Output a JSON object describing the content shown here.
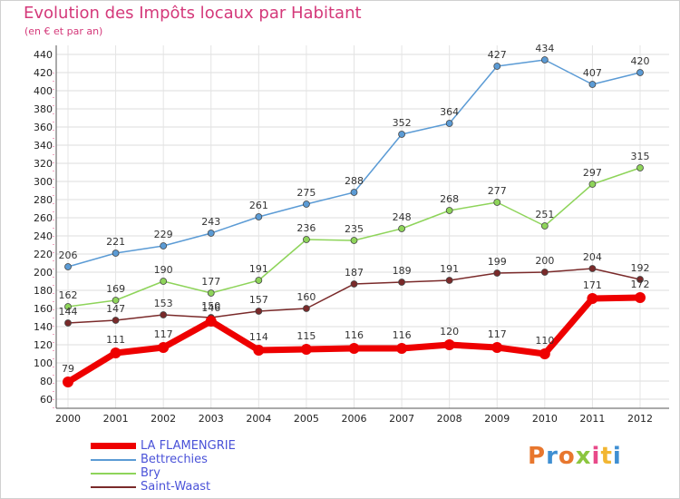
{
  "title": "Evolution des Impôts locaux par Habitant",
  "subtitle": "(en € et par an)",
  "logo_text": "Proxiti",
  "chart_data": {
    "type": "line",
    "x": [
      2000,
      2001,
      2002,
      2003,
      2004,
      2005,
      2006,
      2007,
      2008,
      2009,
      2010,
      2011,
      2012
    ],
    "ylim": [
      60,
      440
    ],
    "yticks": [
      60,
      80,
      100,
      120,
      140,
      160,
      180,
      200,
      220,
      240,
      260,
      280,
      300,
      320,
      340,
      360,
      380,
      400,
      420,
      440
    ],
    "grid": true,
    "legend": "bottom-left",
    "series": [
      {
        "name": "LA FLAMENGRIE",
        "color": "#ee0000",
        "values": [
          79,
          111,
          117,
          146,
          114,
          115,
          116,
          116,
          120,
          117,
          110,
          171,
          172
        ]
      },
      {
        "name": "Bettrechies",
        "color": "#5b9bd5",
        "values": [
          206,
          221,
          229,
          243,
          261,
          275,
          288,
          352,
          364,
          427,
          434,
          407,
          420
        ]
      },
      {
        "name": "Bry",
        "color": "#8ed45a",
        "values": [
          162,
          169,
          190,
          177,
          191,
          236,
          235,
          248,
          268,
          277,
          251,
          297,
          315
        ]
      },
      {
        "name": "Saint-Waast",
        "color": "#7a2a2a",
        "values": [
          144,
          147,
          153,
          150,
          157,
          160,
          187,
          189,
          191,
          199,
          200,
          204,
          192
        ]
      }
    ]
  }
}
